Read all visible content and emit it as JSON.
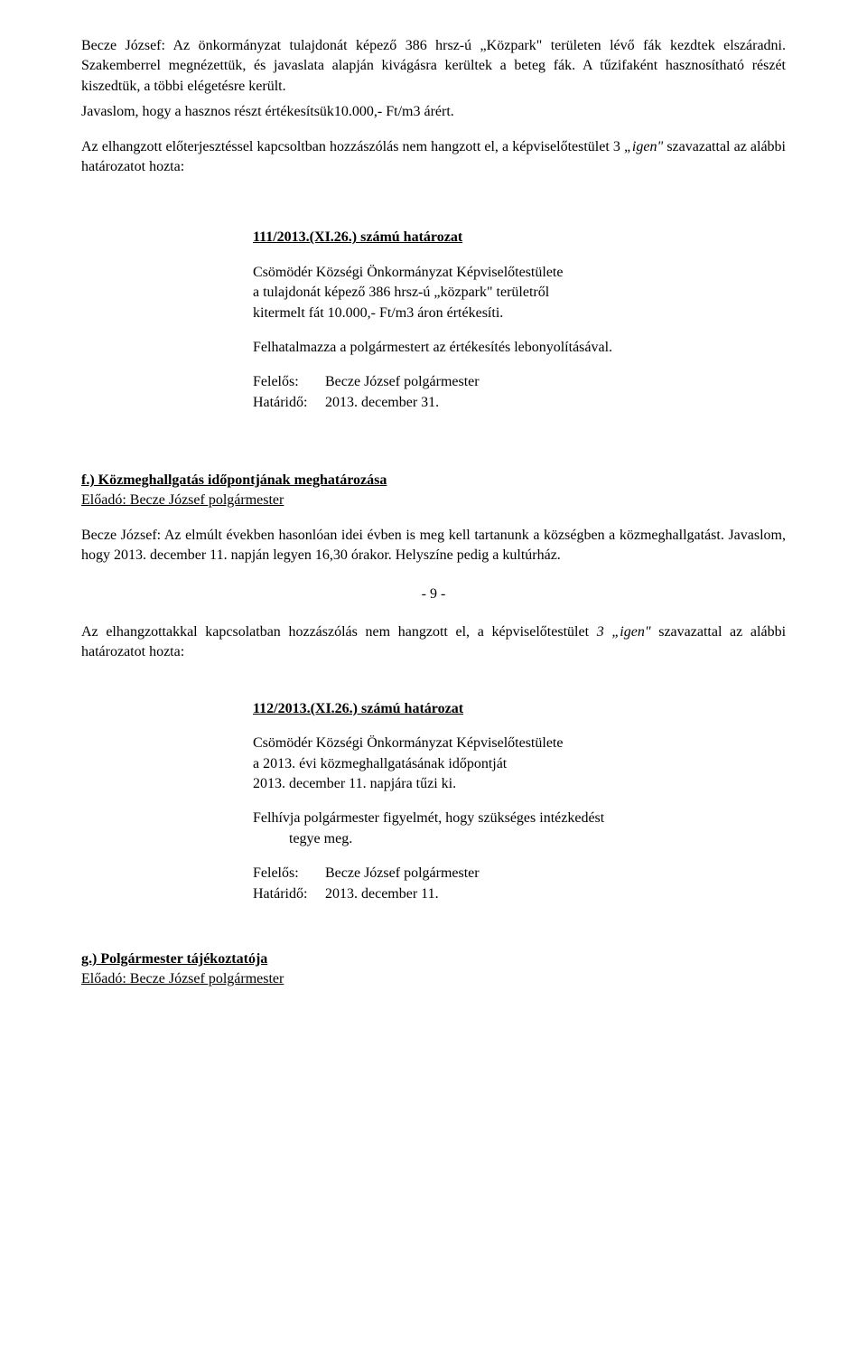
{
  "p1": "Becze József: Az önkormányzat tulajdonát képező 386 hrsz-ú „Közpark\" területen lévő fák kezdtek elszáradni.  Szakemberrel  megnézettük,  és javaslata alapján kivágásra kerültek a beteg fák. A tűzifaként hasznosítható részét kiszedtük, a többi elégetésre került.",
  "p2": "Javaslom, hogy a hasznos részt értékesítsük10.000,- Ft/m3 árért.",
  "p3a": "Az elhangzott előterjesztéssel kapcsoltban hozzászólás nem hangzott el, a képviselőtestület 3 ",
  "p3b": "„igen\"",
  "p3c": " szavazattal az alábbi határozatot hozta:",
  "res1": {
    "title": "111/2013.(XI.26.) számú határozat",
    "l1": "Csömödér Községi Önkormányzat Képviselőtestülete",
    "l2": "a tulajdonát képező  386 hrsz-ú  „közpark\" területről",
    "l3": "kitermelt fát 10.000,- Ft/m3 áron értékesíti.",
    "l4": "Felhatalmazza a polgármestert az értékesítés lebonyolításával.",
    "f_label": "Felelős:",
    "f_val": "Becze József polgármester",
    "h_label": "Határidő:",
    "h_val": "2013. december 31."
  },
  "sec_f_title": "f.) Közmeghallgatás időpontjának meghatározása",
  "sec_f_sub": "Előadó: Becze József  polgármester",
  "p4": "Becze József: Az elmúlt években hasonlóan idei évben is meg kell tartanunk a községben a közmeghallgatást.  Javaslom, hogy 2013. december 11. napján legyen 16,30 órakor. Helyszíne pedig a kultúrház.",
  "page_num": "-                9               -",
  "p5a": "Az elhangzottakkal kapcsolatban hozzászólás nem hangzott el, a képviselőtestület ",
  "p5b": "3 „igen\"",
  "p5c": " szavazattal az alábbi határozatot hozta:",
  "res2": {
    "title": "112/2013.(XI.26.)  számú határozat",
    "l1": "Csömödér Községi Önkormányzat Képviselőtestülete",
    "l2": "a 2013. évi közmeghallgatásának időpontját",
    "l3": "2013. december 11. napjára tűzi ki.",
    "l4": "Felhívja polgármester figyelmét, hogy szükséges intézkedést",
    "l5": "tegye meg.",
    "f_label": "Felelős:",
    "f_val": "Becze József polgármester",
    "h_label": "Határidő:",
    "h_val": "2013. december 11."
  },
  "sec_g_title": "g.) Polgármester tájékoztatója",
  "sec_g_sub": "Előadó: Becze József polgármester"
}
